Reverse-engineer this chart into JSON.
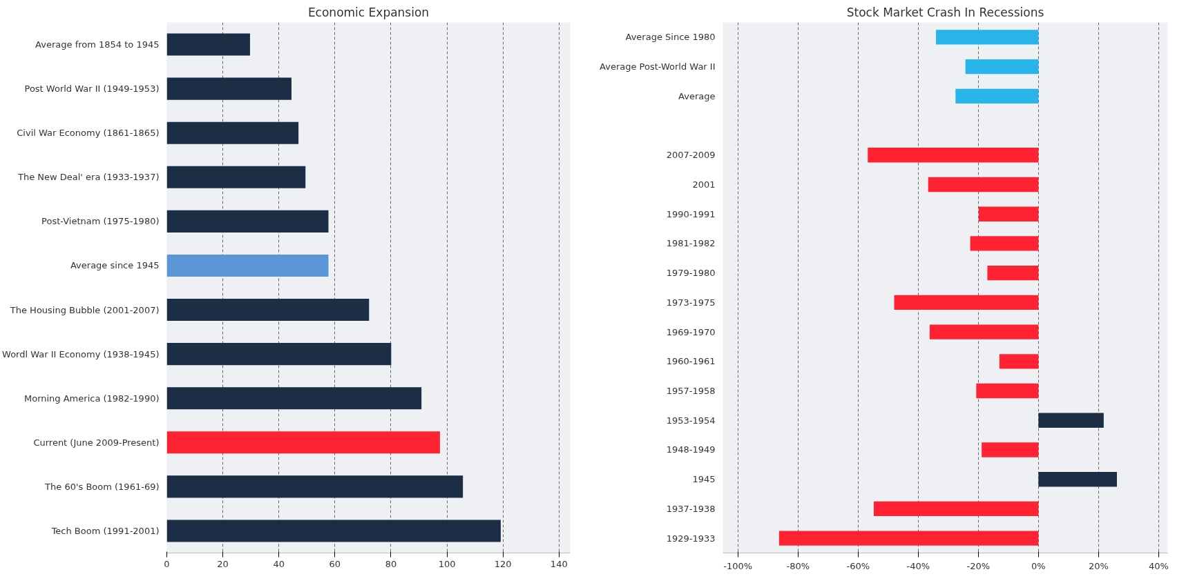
{
  "chart_data": [
    {
      "type": "bar",
      "orientation": "horizontal",
      "title": "Economic Expansion",
      "categories": [
        "Average from 1854 to 1945",
        "Post World War II (1949-1953)",
        "Civil War Economy (1861-1865)",
        "The New Deal' era (1933-1937)",
        "Post-Vietnam (1975-1980)",
        "Average since 1945",
        "The Housing Bubble (2001-2007)",
        "Wordl War II Economy (1938-1945)",
        "Morning America (1982-1990)",
        "Current (June 2009-Present)",
        "The 60's Boom (1961-69)",
        "Tech Boom (1991-2001)"
      ],
      "values": [
        29.7,
        44.5,
        47,
        49.5,
        57.7,
        57.7,
        72.2,
        80.1,
        90.9,
        97.5,
        105.7,
        119.2
      ],
      "colors": [
        "#1b2e45",
        "#1b2e45",
        "#1b2e45",
        "#1b2e45",
        "#1b2e45",
        "#5a96d8",
        "#1b2e45",
        "#1b2e45",
        "#1b2e45",
        "#ff2233",
        "#1b2e45",
        "#1b2e45"
      ],
      "xlim": [
        0,
        144
      ],
      "xticks": [
        0,
        20,
        40,
        60,
        80,
        100,
        120,
        140
      ],
      "grid": "x"
    },
    {
      "type": "bar",
      "orientation": "horizontal",
      "title": "Stock Market Crash In Recessions",
      "categories": [
        "Average Since 1980",
        "Average Post-World War II",
        "Average",
        null,
        "2007-2009",
        "2001",
        "1990-1991",
        "1981-1982",
        "1979-1980",
        "1973-1975",
        "1969-1970",
        "1960-1961",
        "1957-1958",
        "1953-1954",
        "1948-1949",
        "1945",
        "1937-1938",
        "1929-1933"
      ],
      "values": [
        -34.1,
        -24.3,
        -27.6,
        null,
        -56.8,
        -36.7,
        -19.9,
        -22.7,
        -17,
        -48,
        -36.2,
        -13,
        -20.7,
        21.7,
        -18.9,
        26.1,
        -54.8,
        -86.3
      ],
      "colors": [
        "#29b5ea",
        "#29b5ea",
        "#29b5ea",
        null,
        "#ff2233",
        "#ff2233",
        "#ff2233",
        "#ff2233",
        "#ff2233",
        "#ff2233",
        "#ff2233",
        "#ff2233",
        "#ff2233",
        "#1b2e45",
        "#ff2233",
        "#1b2e45",
        "#ff2233",
        "#ff2233"
      ],
      "xlim": [
        -105,
        43
      ],
      "xticks": [
        {
          "value": -100,
          "label": "-100%"
        },
        {
          "value": -80,
          "label": "-80%"
        },
        {
          "value": -60,
          "label": "-60%"
        },
        {
          "value": -40,
          "label": "-40%"
        },
        {
          "value": -20,
          "label": "-20%"
        },
        {
          "value": 0,
          "label": "0%"
        },
        {
          "value": 20,
          "label": "20%"
        },
        {
          "value": 40,
          "label": "40%"
        }
      ],
      "grid": "x"
    }
  ]
}
